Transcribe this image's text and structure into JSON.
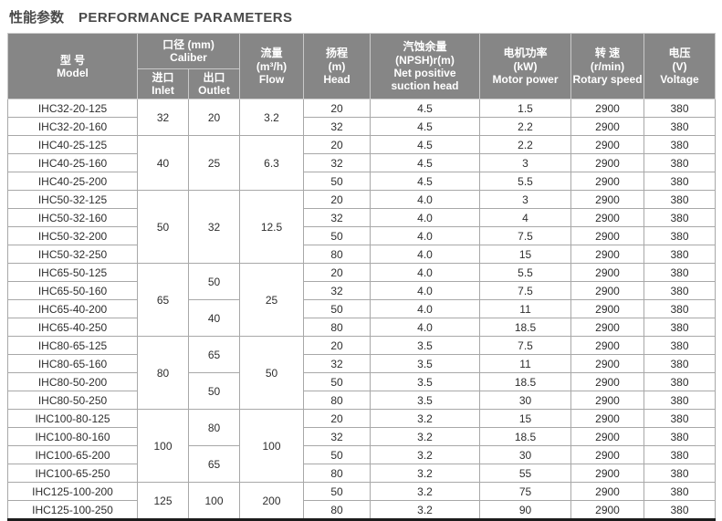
{
  "title": {
    "zh": "性能参数",
    "en": "PERFORMANCE PARAMETERS"
  },
  "colors": {
    "header_bg": "#868686",
    "header_text": "#ffffff",
    "bottom_rule": "#1c1c1c",
    "grid_line": "#a8a8a8"
  },
  "table": {
    "header": {
      "model": [
        "型 号",
        "Model"
      ],
      "caliber": [
        "口径 (mm)",
        "Caliber"
      ],
      "inlet": [
        "进口",
        "Inlet"
      ],
      "outlet": [
        "出口",
        "Outlet"
      ],
      "flow": [
        "流量",
        "(m³/h)",
        "Flow"
      ],
      "head": [
        "扬程",
        "(m)",
        "Head"
      ],
      "npsh": [
        "汽蚀余量",
        "(NPSH)r(m)",
        "Net positive",
        "suction head"
      ],
      "power": [
        "电机功率",
        "(kW)",
        "Motor power"
      ],
      "speed": [
        "转 速",
        "(r/min)",
        "Rotary speed"
      ],
      "voltage": [
        "电压",
        "(V)",
        "Voltage"
      ]
    },
    "rows": [
      {
        "model": "IHC32-20-125",
        "cells": [
          {
            "v": "32",
            "rs": 2
          },
          {
            "v": "20",
            "rs": 2
          },
          {
            "v": "3.2",
            "rs": 2
          },
          "20",
          "4.5",
          "1.5",
          "2900",
          "380"
        ]
      },
      {
        "model": "IHC32-20-160",
        "cells": [
          "32",
          "4.5",
          "2.2",
          "2900",
          "380"
        ]
      },
      {
        "model": "IHC40-25-125",
        "cells": [
          {
            "v": "40",
            "rs": 3
          },
          {
            "v": "25",
            "rs": 3
          },
          {
            "v": "6.3",
            "rs": 3
          },
          "20",
          "4.5",
          "2.2",
          "2900",
          "380"
        ]
      },
      {
        "model": "IHC40-25-160",
        "cells": [
          "32",
          "4.5",
          "3",
          "2900",
          "380"
        ]
      },
      {
        "model": "IHC40-25-200",
        "cells": [
          "50",
          "4.5",
          "5.5",
          "2900",
          "380"
        ]
      },
      {
        "model": "IHC50-32-125",
        "cells": [
          {
            "v": "50",
            "rs": 4
          },
          {
            "v": "32",
            "rs": 4
          },
          {
            "v": "12.5",
            "rs": 4
          },
          "20",
          "4.0",
          "3",
          "2900",
          "380"
        ]
      },
      {
        "model": "IHC50-32-160",
        "cells": [
          "32",
          "4.0",
          "4",
          "2900",
          "380"
        ]
      },
      {
        "model": "IHC50-32-200",
        "cells": [
          "50",
          "4.0",
          "7.5",
          "2900",
          "380"
        ]
      },
      {
        "model": "IHC50-32-250",
        "cells": [
          "80",
          "4.0",
          "15",
          "2900",
          "380"
        ]
      },
      {
        "model": "IHC65-50-125",
        "cells": [
          {
            "v": "65",
            "rs": 4
          },
          {
            "v": "50",
            "rs": 2
          },
          {
            "v": "25",
            "rs": 4
          },
          "20",
          "4.0",
          "5.5",
          "2900",
          "380"
        ]
      },
      {
        "model": "IHC65-50-160",
        "cells": [
          "32",
          "4.0",
          "7.5",
          "2900",
          "380"
        ]
      },
      {
        "model": "IHC65-40-200",
        "cells": [
          {
            "v": "40",
            "rs": 2
          },
          "50",
          "4.0",
          "11",
          "2900",
          "380"
        ]
      },
      {
        "model": "IHC65-40-250",
        "cells": [
          "80",
          "4.0",
          "18.5",
          "2900",
          "380"
        ]
      },
      {
        "model": "IHC80-65-125",
        "cells": [
          {
            "v": "80",
            "rs": 4
          },
          {
            "v": "65",
            "rs": 2
          },
          {
            "v": "50",
            "rs": 4
          },
          "20",
          "3.5",
          "7.5",
          "2900",
          "380"
        ]
      },
      {
        "model": "IHC80-65-160",
        "cells": [
          "32",
          "3.5",
          "11",
          "2900",
          "380"
        ]
      },
      {
        "model": "IHC80-50-200",
        "cells": [
          {
            "v": "50",
            "rs": 2
          },
          "50",
          "3.5",
          "18.5",
          "2900",
          "380"
        ]
      },
      {
        "model": "IHC80-50-250",
        "cells": [
          "80",
          "3.5",
          "30",
          "2900",
          "380"
        ]
      },
      {
        "model": "IHC100-80-125",
        "cells": [
          {
            "v": "100",
            "rs": 4
          },
          {
            "v": "80",
            "rs": 2
          },
          {
            "v": "100",
            "rs": 4
          },
          "20",
          "3.2",
          "15",
          "2900",
          "380"
        ]
      },
      {
        "model": "IHC100-80-160",
        "cells": [
          "32",
          "3.2",
          "18.5",
          "2900",
          "380"
        ]
      },
      {
        "model": "IHC100-65-200",
        "cells": [
          {
            "v": "65",
            "rs": 2
          },
          "50",
          "3.2",
          "30",
          "2900",
          "380"
        ]
      },
      {
        "model": "IHC100-65-250",
        "cells": [
          "80",
          "3.2",
          "55",
          "2900",
          "380"
        ]
      },
      {
        "model": "IHC125-100-200",
        "cells": [
          {
            "v": "125",
            "rs": 2
          },
          {
            "v": "100",
            "rs": 2
          },
          {
            "v": "200",
            "rs": 2
          },
          "50",
          "3.2",
          "75",
          "2900",
          "380"
        ]
      },
      {
        "model": "IHC125-100-250",
        "cells": [
          "80",
          "3.2",
          "90",
          "2900",
          "380"
        ]
      }
    ]
  }
}
